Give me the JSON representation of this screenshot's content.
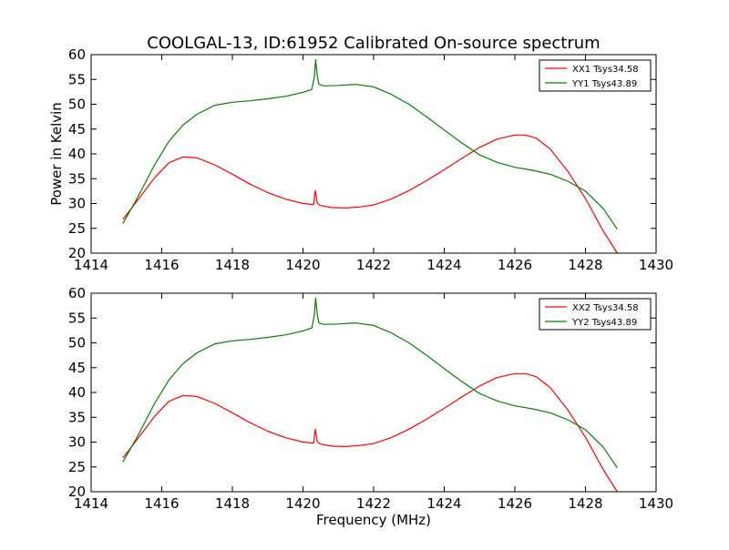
{
  "chart_data": {
    "title": "COOLGAL-13, ID:61952 Calibrated On-source spectrum",
    "xlabel": "Frequency (MHz)",
    "ylabel": "Power in Kelvin",
    "panels": [
      {
        "type": "line",
        "xlim": [
          1414,
          1430
        ],
        "ylim": [
          20,
          60
        ],
        "xticks": [
          1414,
          1416,
          1418,
          1420,
          1422,
          1424,
          1426,
          1428,
          1430
        ],
        "yticks": [
          20,
          25,
          30,
          35,
          40,
          45,
          50,
          55,
          60
        ],
        "legend_position": "top-right",
        "series": [
          {
            "name": "XX1 Tsys34.58",
            "color": "#ff0000",
            "x": [
              1414.9,
              1415.3,
              1415.8,
              1416.2,
              1416.6,
              1417.0,
              1417.5,
              1418.0,
              1418.5,
              1419.0,
              1419.5,
              1420.0,
              1420.3,
              1420.35,
              1420.4,
              1420.45,
              1420.5,
              1420.8,
              1421.2,
              1421.6,
              1422.0,
              1422.5,
              1423.0,
              1423.5,
              1424.0,
              1424.5,
              1425.0,
              1425.5,
              1426.0,
              1426.3,
              1426.6,
              1427.0,
              1427.5,
              1428.0,
              1428.5,
              1428.9
            ],
            "y": [
              26.8,
              30.5,
              35.2,
              38.2,
              39.4,
              39.2,
              37.8,
              35.9,
              33.9,
              32.2,
              30.9,
              30.0,
              29.8,
              32.6,
              30.2,
              29.8,
              29.6,
              29.2,
              29.1,
              29.3,
              29.7,
              30.9,
              32.6,
              34.6,
              36.8,
              39.1,
              41.3,
              43.0,
              43.8,
              43.8,
              43.2,
              41.0,
              36.5,
              31.0,
              24.5,
              20.0
            ]
          },
          {
            "name": "YY1 Tsys43.89",
            "color": "#008000",
            "x": [
              1414.9,
              1415.3,
              1415.8,
              1416.2,
              1416.6,
              1417.0,
              1417.5,
              1418.0,
              1418.5,
              1419.0,
              1419.5,
              1420.0,
              1420.25,
              1420.32,
              1420.36,
              1420.4,
              1420.45,
              1420.6,
              1421.0,
              1421.5,
              1422.0,
              1422.5,
              1423.0,
              1423.5,
              1424.0,
              1424.5,
              1425.0,
              1425.5,
              1426.0,
              1426.5,
              1427.0,
              1427.5,
              1428.0,
              1428.5,
              1428.9
            ],
            "y": [
              26.0,
              31.0,
              37.8,
              42.5,
              45.8,
              48.0,
              49.8,
              50.4,
              50.7,
              51.1,
              51.6,
              52.4,
              53.0,
              55.5,
              59.0,
              56.0,
              54.0,
              53.7,
              53.8,
              54.0,
              53.5,
              52.0,
              50.0,
              47.5,
              44.8,
              42.2,
              39.8,
              38.3,
              37.3,
              36.7,
              35.9,
              34.5,
              32.5,
              29.0,
              24.8
            ]
          }
        ]
      },
      {
        "type": "line",
        "xlim": [
          1414,
          1430
        ],
        "ylim": [
          20,
          60
        ],
        "xticks": [
          1414,
          1416,
          1418,
          1420,
          1422,
          1424,
          1426,
          1428,
          1430
        ],
        "yticks": [
          20,
          25,
          30,
          35,
          40,
          45,
          50,
          55,
          60
        ],
        "legend_position": "top-right",
        "series": [
          {
            "name": "XX2 Tsys34.58",
            "color": "#ff0000",
            "x": [
              1414.9,
              1415.3,
              1415.8,
              1416.2,
              1416.6,
              1417.0,
              1417.5,
              1418.0,
              1418.5,
              1419.0,
              1419.5,
              1420.0,
              1420.3,
              1420.35,
              1420.4,
              1420.45,
              1420.5,
              1420.8,
              1421.2,
              1421.6,
              1422.0,
              1422.5,
              1423.0,
              1423.5,
              1424.0,
              1424.5,
              1425.0,
              1425.5,
              1426.0,
              1426.3,
              1426.6,
              1427.0,
              1427.5,
              1428.0,
              1428.5,
              1428.9
            ],
            "y": [
              26.8,
              30.5,
              35.2,
              38.2,
              39.4,
              39.2,
              37.8,
              35.9,
              33.9,
              32.2,
              30.9,
              30.0,
              29.8,
              32.6,
              30.2,
              29.8,
              29.6,
              29.2,
              29.1,
              29.3,
              29.7,
              30.9,
              32.6,
              34.6,
              36.8,
              39.1,
              41.3,
              43.0,
              43.8,
              43.8,
              43.2,
              41.0,
              36.5,
              31.0,
              24.5,
              20.0
            ]
          },
          {
            "name": "YY2 Tsys43.89",
            "color": "#008000",
            "x": [
              1414.9,
              1415.3,
              1415.8,
              1416.2,
              1416.6,
              1417.0,
              1417.5,
              1418.0,
              1418.5,
              1419.0,
              1419.5,
              1420.0,
              1420.25,
              1420.32,
              1420.36,
              1420.4,
              1420.45,
              1420.6,
              1421.0,
              1421.5,
              1422.0,
              1422.5,
              1423.0,
              1423.5,
              1424.0,
              1424.5,
              1425.0,
              1425.5,
              1426.0,
              1426.5,
              1427.0,
              1427.5,
              1428.0,
              1428.5,
              1428.9
            ],
            "y": [
              26.0,
              31.0,
              37.8,
              42.5,
              45.8,
              48.0,
              49.8,
              50.4,
              50.7,
              51.1,
              51.6,
              52.4,
              53.0,
              55.5,
              59.0,
              56.0,
              54.0,
              53.7,
              53.8,
              54.0,
              53.5,
              52.0,
              50.0,
              47.5,
              44.8,
              42.2,
              39.8,
              38.3,
              37.3,
              36.7,
              35.9,
              34.5,
              32.5,
              29.0,
              24.8
            ]
          }
        ]
      }
    ]
  }
}
